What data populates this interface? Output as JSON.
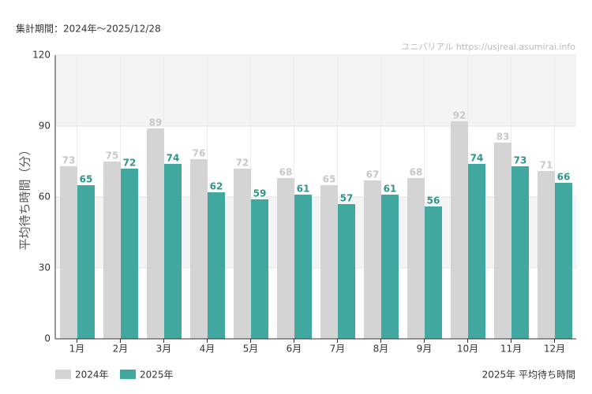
{
  "chart_data": {
    "type": "bar",
    "subtitle": "集計期間：2024年～2025/12/28",
    "source": "ユニバリアル  https://usjreal.asumirai.info",
    "footer": "2025年 平均待ち時間",
    "y_label": "平均待ち時間（分）",
    "categories": [
      "1月",
      "2月",
      "3月",
      "4月",
      "5月",
      "6月",
      "7月",
      "8月",
      "9月",
      "10月",
      "11月",
      "12月"
    ],
    "series": [
      {
        "name": "2024年",
        "color": "#d4d4d4",
        "label_color": "#c8c8c8",
        "values": [
          73,
          75,
          89,
          76,
          72,
          68,
          65,
          67,
          68,
          92,
          83,
          71
        ]
      },
      {
        "name": "2025年",
        "color": "#40a89e",
        "label_color": "#2f9489",
        "values": [
          65,
          72,
          74,
          62,
          59,
          61,
          57,
          61,
          56,
          74,
          73,
          66
        ]
      }
    ],
    "ylim": [
      0,
      120
    ],
    "yticks": [
      0,
      30,
      60,
      90,
      120
    ],
    "grid": true
  }
}
